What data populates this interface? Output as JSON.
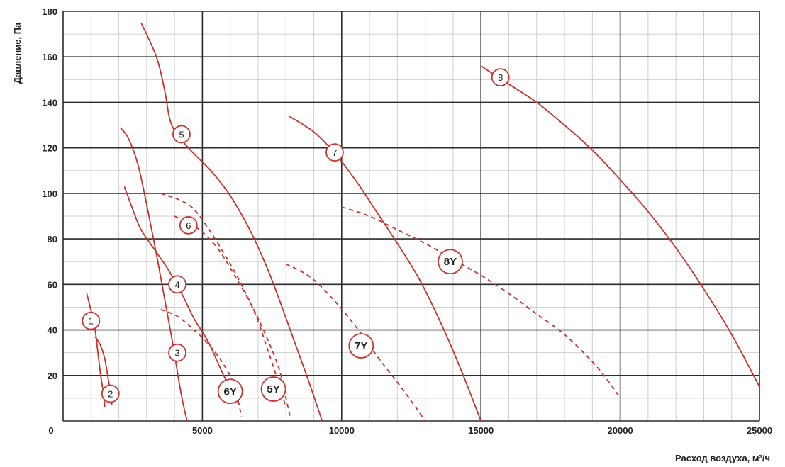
{
  "chart_data": {
    "type": "line",
    "xlabel": "Расход воздуха, м³/ч",
    "ylabel": "Давление, Па",
    "xlim": [
      0,
      25000
    ],
    "ylim": [
      0,
      180
    ],
    "x_ticks": [
      0,
      5000,
      10000,
      15000,
      20000,
      25000
    ],
    "y_ticks": [
      20,
      40,
      60,
      80,
      100,
      120,
      140,
      160,
      180
    ],
    "grid": true,
    "colors": {
      "curve": "#c8332e",
      "grid_major": "#2b2b2b",
      "grid_minor": "#cfcfcf"
    },
    "series": [
      {
        "name": "1",
        "style": "solid",
        "marker_at": [
          1000,
          44
        ],
        "points": [
          [
            850,
            56
          ],
          [
            1050,
            46
          ],
          [
            1150,
            40
          ],
          [
            1250,
            30
          ],
          [
            1350,
            20
          ],
          [
            1450,
            12
          ],
          [
            1500,
            6
          ]
        ]
      },
      {
        "name": "2",
        "style": "solid",
        "marker_at": [
          1700,
          12
        ],
        "points": [
          [
            1150,
            37
          ],
          [
            1350,
            33
          ],
          [
            1500,
            27
          ],
          [
            1600,
            20
          ],
          [
            1700,
            12
          ],
          [
            1750,
            7
          ]
        ]
      },
      {
        "name": "3",
        "style": "solid",
        "marker_at": [
          4100,
          30
        ],
        "points": [
          [
            2050,
            129
          ],
          [
            2350,
            124
          ],
          [
            2700,
            112
          ],
          [
            3050,
            92
          ],
          [
            3400,
            70
          ],
          [
            3700,
            50
          ],
          [
            3950,
            33
          ],
          [
            4150,
            18
          ],
          [
            4300,
            8
          ],
          [
            4450,
            0
          ]
        ]
      },
      {
        "name": "4",
        "style": "solid",
        "marker_at": [
          4100,
          60
        ],
        "points": [
          [
            2200,
            103
          ],
          [
            2500,
            93
          ],
          [
            2800,
            84
          ],
          [
            3300,
            75
          ],
          [
            3800,
            66
          ],
          [
            4300,
            55
          ],
          [
            4700,
            45
          ],
          [
            5200,
            35
          ],
          [
            5650,
            23
          ],
          [
            6000,
            14
          ]
        ]
      },
      {
        "name": "5",
        "style": "solid",
        "marker_at": [
          4250,
          126
        ],
        "points": [
          [
            2800,
            175
          ],
          [
            3350,
            160
          ],
          [
            3650,
            145
          ],
          [
            3900,
            130
          ],
          [
            4500,
            120
          ],
          [
            5300,
            110
          ],
          [
            6000,
            99
          ],
          [
            6700,
            84
          ],
          [
            7300,
            68
          ],
          [
            7800,
            52
          ],
          [
            8300,
            35
          ],
          [
            8800,
            18
          ],
          [
            9300,
            0
          ]
        ]
      },
      {
        "name": "6",
        "style": "dashed",
        "marker_at": [
          4500,
          86
        ],
        "points": [
          [
            4000,
            90
          ],
          [
            4500,
            87
          ],
          [
            5000,
            83
          ],
          [
            5600,
            75
          ],
          [
            6200,
            63
          ],
          [
            6800,
            50
          ],
          [
            7300,
            37
          ],
          [
            7750,
            23
          ],
          [
            8000,
            10
          ],
          [
            8150,
            2
          ]
        ]
      },
      {
        "name": "7",
        "style": "solid",
        "marker_at": [
          9750,
          118
        ],
        "points": [
          [
            8100,
            134
          ],
          [
            9000,
            127
          ],
          [
            9800,
            117
          ],
          [
            10600,
            104
          ],
          [
            11300,
            91
          ],
          [
            12000,
            78
          ],
          [
            12800,
            62
          ],
          [
            13600,
            42
          ],
          [
            14300,
            22
          ],
          [
            15000,
            0
          ]
        ]
      },
      {
        "name": "8",
        "style": "solid",
        "marker_at": [
          15700,
          151
        ],
        "points": [
          [
            15000,
            156
          ],
          [
            16000,
            148
          ],
          [
            17000,
            140
          ],
          [
            18000,
            130
          ],
          [
            19000,
            119
          ],
          [
            20000,
            106
          ],
          [
            21000,
            92
          ],
          [
            22000,
            76
          ],
          [
            23000,
            58
          ],
          [
            24000,
            38
          ],
          [
            25000,
            15
          ]
        ]
      },
      {
        "name": "5Y",
        "style": "dashed",
        "marker_at": [
          7550,
          14
        ],
        "points": [
          [
            3500,
            100
          ],
          [
            4200,
            97
          ],
          [
            4700,
            93
          ],
          [
            5300,
            83
          ],
          [
            5900,
            71
          ],
          [
            6400,
            60
          ],
          [
            6900,
            47
          ],
          [
            7300,
            33
          ],
          [
            7700,
            18
          ],
          [
            8000,
            6
          ]
        ]
      },
      {
        "name": "6Y",
        "style": "dashed",
        "marker_at": [
          6000,
          13
        ],
        "points": [
          [
            3500,
            49
          ],
          [
            4100,
            46
          ],
          [
            4700,
            40
          ],
          [
            5200,
            34
          ],
          [
            5700,
            26
          ],
          [
            6100,
            17
          ],
          [
            6300,
            8
          ],
          [
            6400,
            2
          ]
        ]
      },
      {
        "name": "7Y",
        "style": "dashed",
        "marker_at": [
          10700,
          33
        ],
        "points": [
          [
            8000,
            69
          ],
          [
            8900,
            63
          ],
          [
            9800,
            52
          ],
          [
            10600,
            40
          ],
          [
            11300,
            28
          ],
          [
            12000,
            17
          ],
          [
            12600,
            7
          ],
          [
            13000,
            0
          ]
        ]
      },
      {
        "name": "8Y",
        "style": "dashed",
        "marker_at": [
          13900,
          70
        ],
        "points": [
          [
            10000,
            94
          ],
          [
            11000,
            90
          ],
          [
            12000,
            84
          ],
          [
            13000,
            78
          ],
          [
            14000,
            71
          ],
          [
            15000,
            64
          ],
          [
            16000,
            56
          ],
          [
            17000,
            47
          ],
          [
            18000,
            38
          ],
          [
            19000,
            26
          ],
          [
            19600,
            17
          ],
          [
            20000,
            10
          ]
        ]
      }
    ]
  }
}
